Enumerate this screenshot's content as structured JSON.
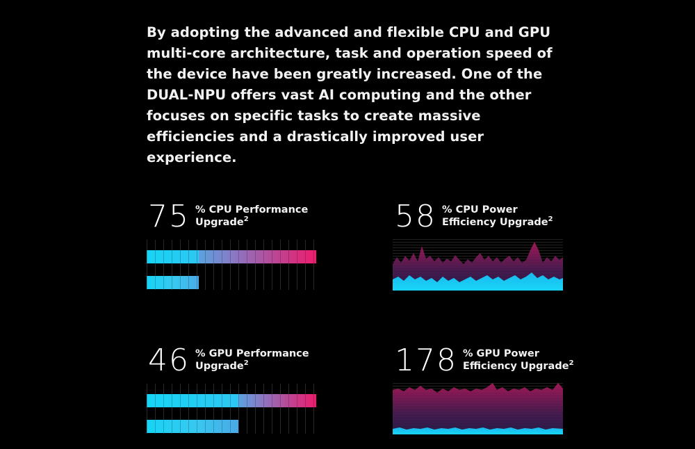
{
  "intro": {
    "text": "By adopting the advanced and flexible CPU and GPU multi-core architecture, task and operation speed of the device have been greatly increased. One of the DUAL-NPU offers vast AI computing and the other focuses on specific tasks to create massive efficiencies and a drastically improved user experience."
  },
  "stats": [
    {
      "number": "75",
      "line1": "% CPU Performance",
      "line2": "Upgrade",
      "footnote": "2",
      "visual": "bar",
      "base_fraction": 0.308,
      "upgraded_fraction": 1.0
    },
    {
      "number": "58",
      "line1": "% CPU Power",
      "line2": "Efficiency Upgrade",
      "footnote": "2",
      "visual": "wave"
    },
    {
      "number": "46",
      "line1": "% GPU Performance",
      "line2": "Upgrade",
      "footnote": "2",
      "visual": "bar",
      "base_fraction": 0.54,
      "upgraded_fraction": 1.0
    },
    {
      "number": "178",
      "line1": "% GPU Power",
      "line2": "Efficiency Upgrade",
      "footnote": "2",
      "visual": "wave"
    }
  ],
  "colors": {
    "cyan": "#16d4f5",
    "magenta": "#ee1d6e",
    "purple": "#5a1a4a",
    "background": "#000000"
  }
}
